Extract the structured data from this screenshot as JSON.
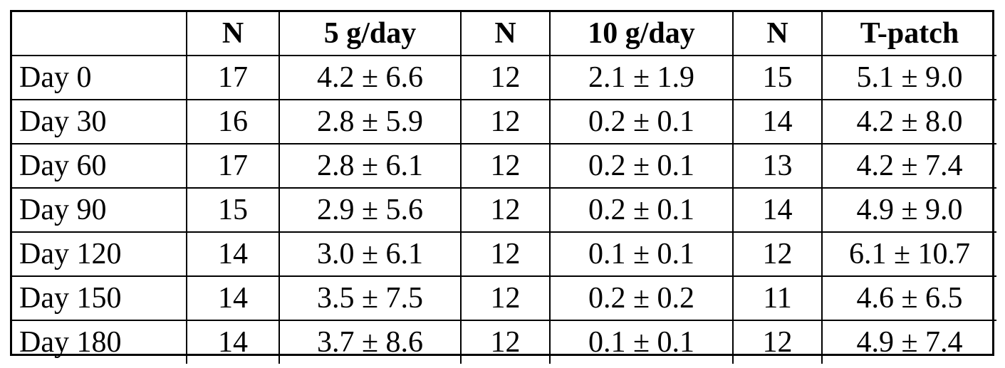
{
  "table": {
    "headers": [
      "",
      "N",
      "5 g/day",
      "N",
      "10 g/day",
      "N",
      "T-patch"
    ],
    "rows": [
      [
        "Day 0",
        "17",
        "4.2 ± 6.6",
        "12",
        "2.1 ± 1.9",
        "15",
        "5.1 ± 9.0"
      ],
      [
        "Day 30",
        "16",
        "2.8 ± 5.9",
        "12",
        "0.2 ± 0.1",
        "14",
        "4.2 ± 8.0"
      ],
      [
        "Day 60",
        "17",
        "2.8 ± 6.1",
        "12",
        "0.2 ± 0.1",
        "13",
        "4.2 ± 7.4"
      ],
      [
        "Day 90",
        "15",
        "2.9 ± 5.6",
        "12",
        "0.2 ± 0.1",
        "14",
        "4.9 ± 9.0"
      ],
      [
        "Day 120",
        "14",
        "3.0 ± 6.1",
        "12",
        "0.1 ± 0.1",
        "12",
        "6.1 ± 10.7"
      ],
      [
        "Day 150",
        "14",
        "3.5 ± 7.5",
        "12",
        "0.2 ± 0.2",
        "11",
        "4.6 ± 6.5"
      ],
      [
        "Day 180",
        "14",
        "3.7 ± 8.6",
        "12",
        "0.1 ± 0.1",
        "12",
        "4.9 ± 7.4"
      ]
    ]
  }
}
